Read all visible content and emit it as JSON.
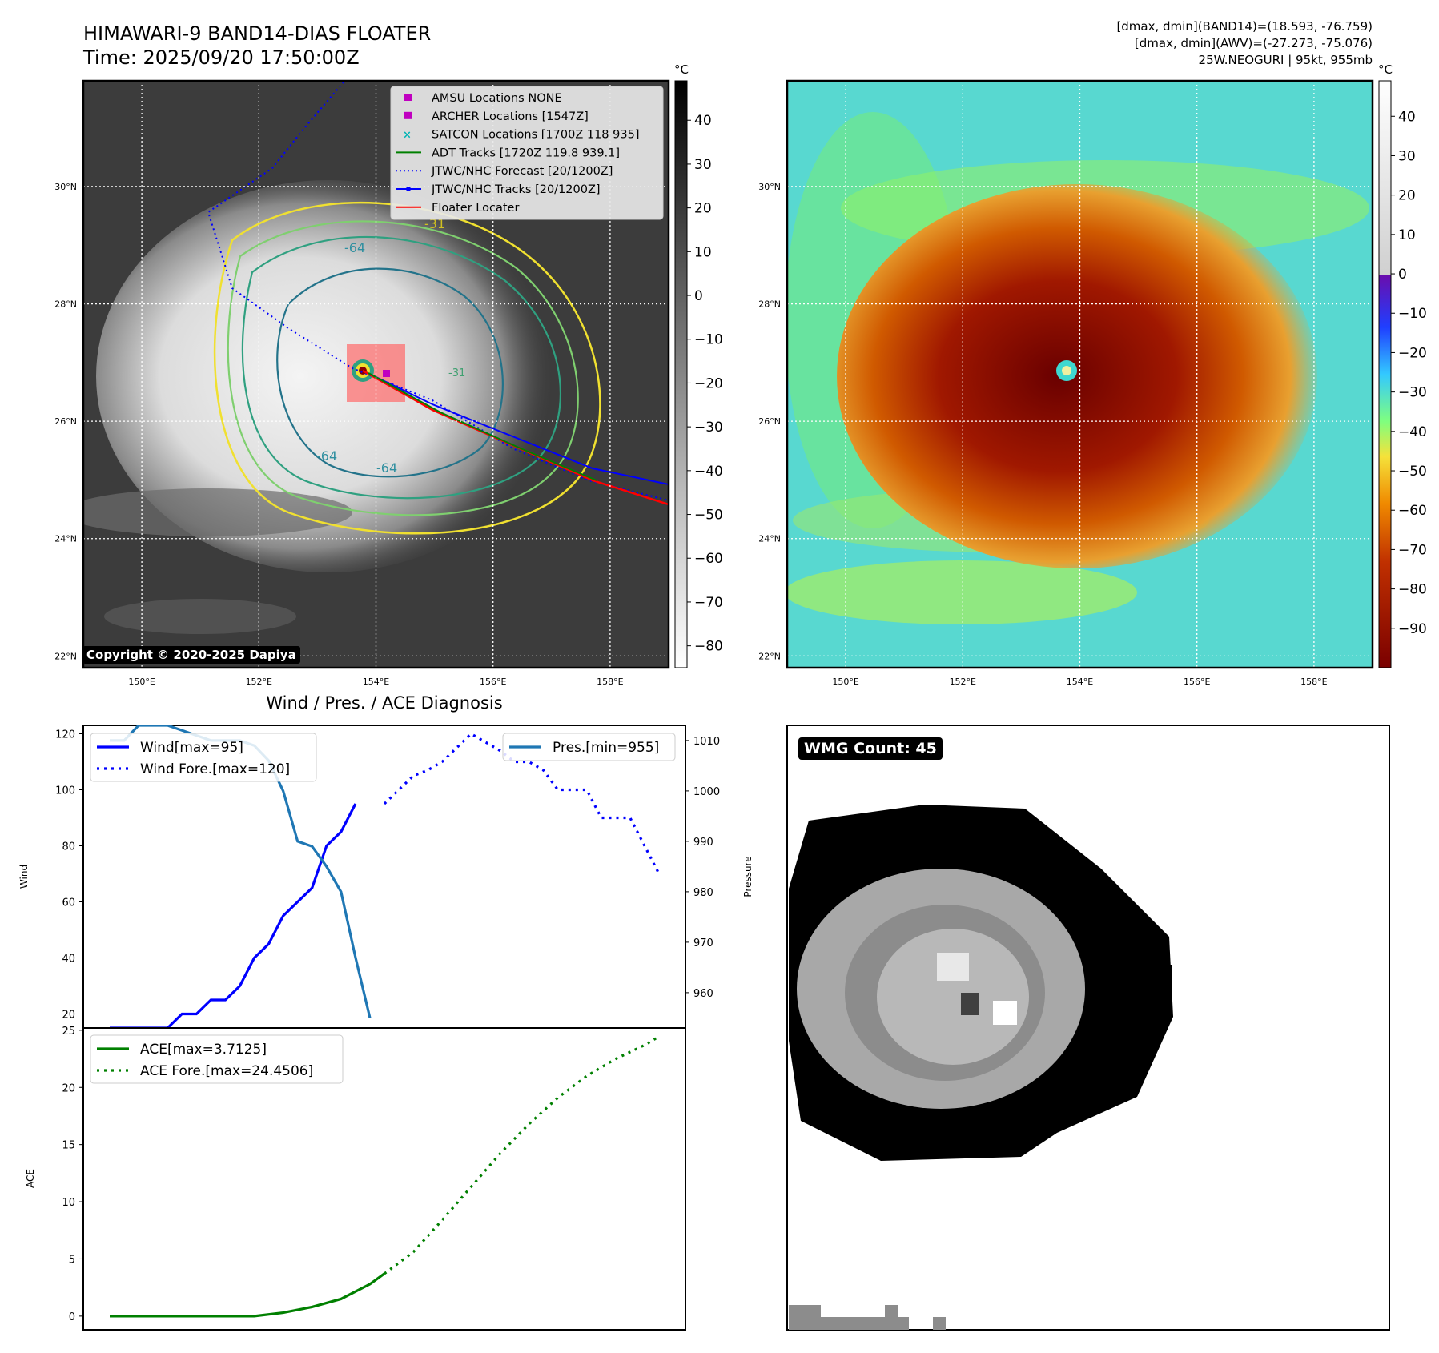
{
  "header": {
    "title_line1": "HIMAWARI-9 BAND14-DIAS FLOATER",
    "title_line2": "Time: 2025/09/20 17:50:00Z",
    "info_line1": "[dmax, dmin](BAND14)=(18.593, -76.759)",
    "info_line2": "[dmax, dmin](AWV)=(-27.273, -75.076)",
    "info_line3": "25W.NEOGURI | 95kt, 955mb"
  },
  "copyright": "Copyright © 2020-2025 Dapiya",
  "wmg_label": "WMG Count: 45",
  "map": {
    "lat_labels": [
      "30°N",
      "28°N",
      "26°N",
      "24°N",
      "22°N"
    ],
    "lat_values": [
      30,
      28,
      26,
      24,
      22
    ],
    "lon_labels": [
      "150°E",
      "152°E",
      "154°E",
      "156°E",
      "158°E"
    ],
    "lon_values": [
      150,
      152,
      154,
      156,
      158
    ],
    "lat_range": [
      21.8,
      31.8
    ],
    "lon_range": [
      149,
      159
    ],
    "contour_labels": [
      "-31",
      "-64",
      "-64",
      "-64",
      "-31"
    ],
    "legend": [
      {
        "label": "AMSU Locations NONE",
        "color": "#c000c0",
        "marker": "square"
      },
      {
        "label": "ARCHER Locations [1547Z]",
        "color": "#c000c0",
        "marker": "square"
      },
      {
        "label": "SATCON Locations [1700Z 118 935]",
        "color": "#00b4b4",
        "marker": "x"
      },
      {
        "label": "ADT Tracks [1720Z 119.8 939.1]",
        "color": "#008000",
        "marker": "line"
      },
      {
        "label": "JTWC/NHC Forecast [20/1200Z]",
        "color": "#0000ff",
        "marker": "dotted"
      },
      {
        "label": "JTWC/NHC Tracks [20/1200Z]",
        "color": "#0000ff",
        "marker": "dotline"
      },
      {
        "label": "Floater Locater",
        "color": "#ff0000",
        "marker": "line"
      }
    ]
  },
  "colorbar_gray": {
    "unit": "°C",
    "ticks": [
      "40",
      "30",
      "20",
      "10",
      "0",
      "−10",
      "−20",
      "−30",
      "−40",
      "−50",
      "−60",
      "−70",
      "−80"
    ],
    "tick_values": [
      40,
      30,
      20,
      10,
      0,
      -10,
      -20,
      -30,
      -40,
      -50,
      -60,
      -70,
      -80
    ],
    "range": [
      -85,
      49
    ]
  },
  "colorbar_color": {
    "unit": "°C",
    "ticks": [
      "40",
      "30",
      "20",
      "10",
      "0",
      "−10",
      "−20",
      "−30",
      "−40",
      "−50",
      "−60",
      "−70",
      "−80",
      "−90"
    ],
    "tick_values": [
      40,
      30,
      20,
      10,
      0,
      -10,
      -20,
      -30,
      -40,
      -50,
      -60,
      -70,
      -80,
      -90
    ],
    "range": [
      -100,
      49
    ]
  },
  "chart_data": [
    {
      "type": "line",
      "title": "Wind / Pres. / ACE Diagnosis",
      "ylabel": "Wind",
      "ylabel_right": "Pressure",
      "ylim": [
        15,
        123
      ],
      "ylim_right": [
        953,
        1013
      ],
      "yticks": [
        20,
        40,
        60,
        80,
        100,
        120
      ],
      "yticks_right": [
        960,
        970,
        980,
        990,
        1000,
        1010
      ],
      "x_count": 38,
      "series": [
        {
          "name": "Wind[max=95]",
          "color": "#0000ff",
          "style": "solid",
          "axis": "left",
          "x": [
            0,
            1,
            2,
            3,
            4,
            5,
            6,
            7,
            8,
            9,
            10,
            11,
            12,
            13,
            14,
            15,
            16,
            17,
            18,
            19
          ],
          "values": [
            15,
            15,
            15,
            15,
            15,
            20,
            20,
            25,
            25,
            30,
            40,
            45,
            55,
            60,
            65,
            80,
            85,
            95,
            null,
            null
          ]
        },
        {
          "name": "Wind Fore.[max=120]",
          "color": "#0000ff",
          "style": "dotted",
          "axis": "left",
          "x": [
            19,
            20,
            21,
            22,
            23,
            24,
            25,
            26,
            27,
            28,
            29,
            30,
            31,
            32,
            33,
            34,
            35,
            36,
            37,
            38
          ],
          "values": [
            95,
            100,
            105,
            107,
            110,
            115,
            120,
            117,
            114,
            110,
            110,
            107,
            100,
            100,
            100,
            90,
            90,
            90,
            80,
            70
          ]
        },
        {
          "name": "Pres.[min=955]",
          "color": "#1f77b4",
          "style": "solid",
          "axis": "right",
          "x": [
            0,
            1,
            2,
            3,
            4,
            5,
            6,
            7,
            8,
            9,
            10,
            11,
            12,
            13,
            14,
            15,
            16,
            17,
            18,
            19
          ],
          "values": [
            1010,
            1010,
            1013,
            1013,
            1013,
            1012,
            1011,
            1010,
            1010,
            1010,
            1009,
            1006,
            1000,
            990,
            989,
            985,
            980,
            967,
            955,
            null
          ]
        }
      ]
    },
    {
      "type": "line",
      "ylabel": "ACE",
      "ylim": [
        -1.2,
        25.2
      ],
      "yticks": [
        0,
        5,
        10,
        15,
        20,
        25
      ],
      "series": [
        {
          "name": "ACE[max=3.7125]",
          "color": "#008000",
          "style": "solid",
          "x": [
            0,
            2,
            4,
            6,
            8,
            10,
            12,
            14,
            16,
            18,
            19
          ],
          "values": [
            0,
            0,
            0,
            0,
            0,
            0,
            0.3,
            0.8,
            1.5,
            2.8,
            3.7125
          ]
        },
        {
          "name": "ACE Fore.[max=24.4506]",
          "color": "#008000",
          "style": "dotted",
          "x": [
            19,
            21,
            23,
            25,
            27,
            29,
            31,
            33,
            35,
            37,
            38
          ],
          "values": [
            3.7125,
            5.6,
            8.4,
            11.3,
            14.2,
            16.8,
            19.1,
            21.0,
            22.5,
            23.7,
            24.4506
          ]
        }
      ]
    }
  ]
}
